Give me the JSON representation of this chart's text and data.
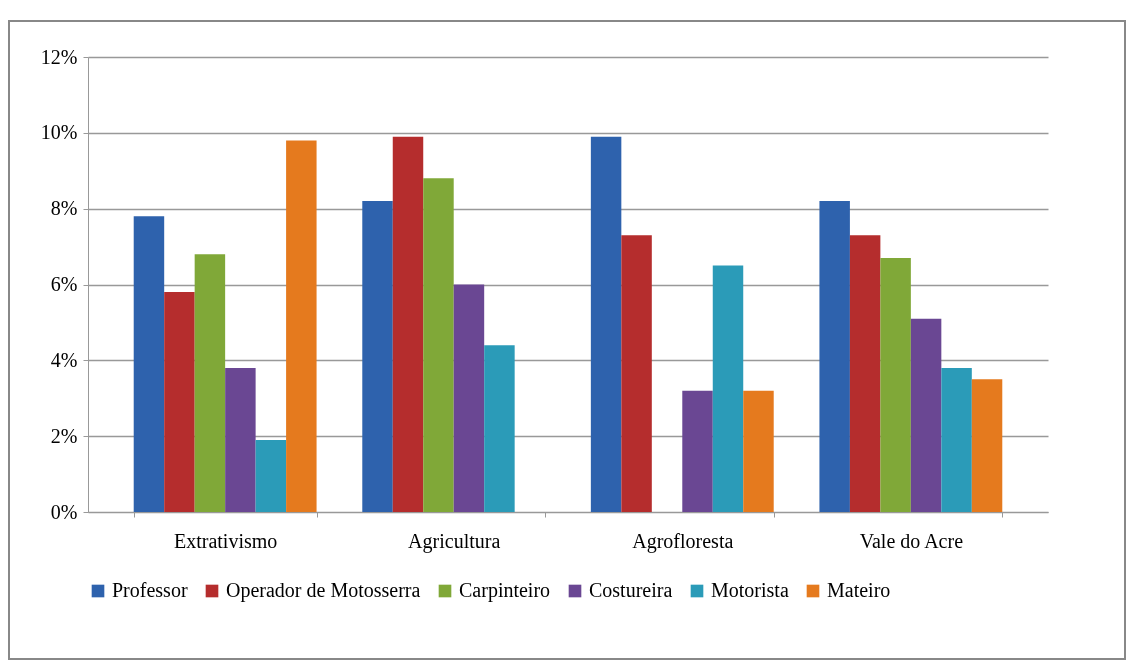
{
  "chart_data": {
    "type": "bar",
    "categories": [
      "Extrativismo",
      "Agricultura",
      "Agrofloresta",
      "Vale do Acre"
    ],
    "series": [
      {
        "name": "Professor",
        "color": "#2e62ad",
        "values": [
          7.8,
          8.2,
          9.9,
          8.2
        ]
      },
      {
        "name": "Operador de Motosserra",
        "color": "#b52d2d",
        "values": [
          5.8,
          9.9,
          7.3,
          7.3
        ]
      },
      {
        "name": "Carpinteiro",
        "color": "#80a838",
        "values": [
          6.8,
          8.8,
          null,
          6.7
        ]
      },
      {
        "name": "Costureira",
        "color": "#6a4793",
        "values": [
          3.8,
          6.0,
          3.2,
          5.1
        ]
      },
      {
        "name": "Motorista",
        "color": "#2b9bb8",
        "values": [
          1.9,
          4.4,
          6.5,
          3.8
        ]
      },
      {
        "name": "Mateiro",
        "color": "#e57a1e",
        "values": [
          9.8,
          null,
          3.2,
          3.5
        ]
      }
    ],
    "ylim": [
      0,
      12
    ],
    "yticks": [
      {
        "value": 0,
        "label": "0%"
      },
      {
        "value": 2,
        "label": "2%"
      },
      {
        "value": 4,
        "label": "4%"
      },
      {
        "value": 6,
        "label": "6%"
      },
      {
        "value": 8,
        "label": "8%"
      },
      {
        "value": 10,
        "label": "10%"
      },
      {
        "value": 12,
        "label": "12%"
      }
    ],
    "grid": "y",
    "legend": "bottom"
  }
}
